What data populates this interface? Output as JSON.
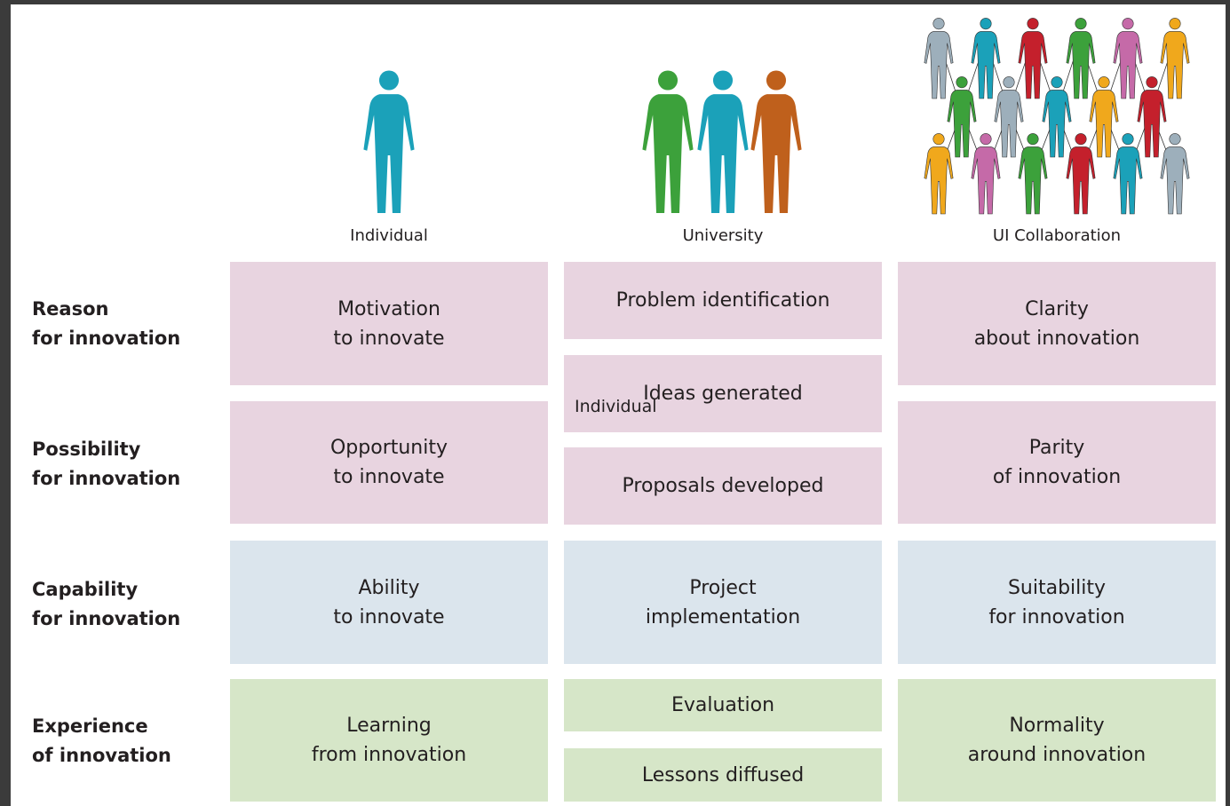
{
  "columns": [
    {
      "label": "Individual"
    },
    {
      "label": "University"
    },
    {
      "label": "UI Collaboration"
    }
  ],
  "rows": [
    {
      "label": [
        "Reason",
        "for innovation"
      ]
    },
    {
      "label": [
        "Possibility",
        "for innovation"
      ]
    },
    {
      "label": [
        "Capability",
        "for innovation"
      ]
    },
    {
      "label": [
        "Experience",
        "of innovation"
      ]
    }
  ],
  "cells": {
    "individual": [
      [
        "Motivation",
        "to innovate"
      ],
      [
        "Opportunity",
        "to innovate"
      ],
      [
        "Ability",
        "to innovate"
      ],
      [
        "Learning",
        "from innovation"
      ]
    ],
    "university": [
      [
        "Problem identification"
      ],
      [
        "Ideas generated"
      ],
      [
        "Proposals developed"
      ],
      [
        "Project",
        "implementation"
      ],
      [
        "Evaluation"
      ],
      [
        "Lessons diffused"
      ]
    ],
    "collaboration": [
      [
        "Clarity",
        "about innovation"
      ],
      [
        "Parity",
        "of innovation"
      ],
      [
        "Suitability",
        "for innovation"
      ],
      [
        "Normality",
        "around innovation"
      ]
    ]
  },
  "overlay_label": "Individual"
}
